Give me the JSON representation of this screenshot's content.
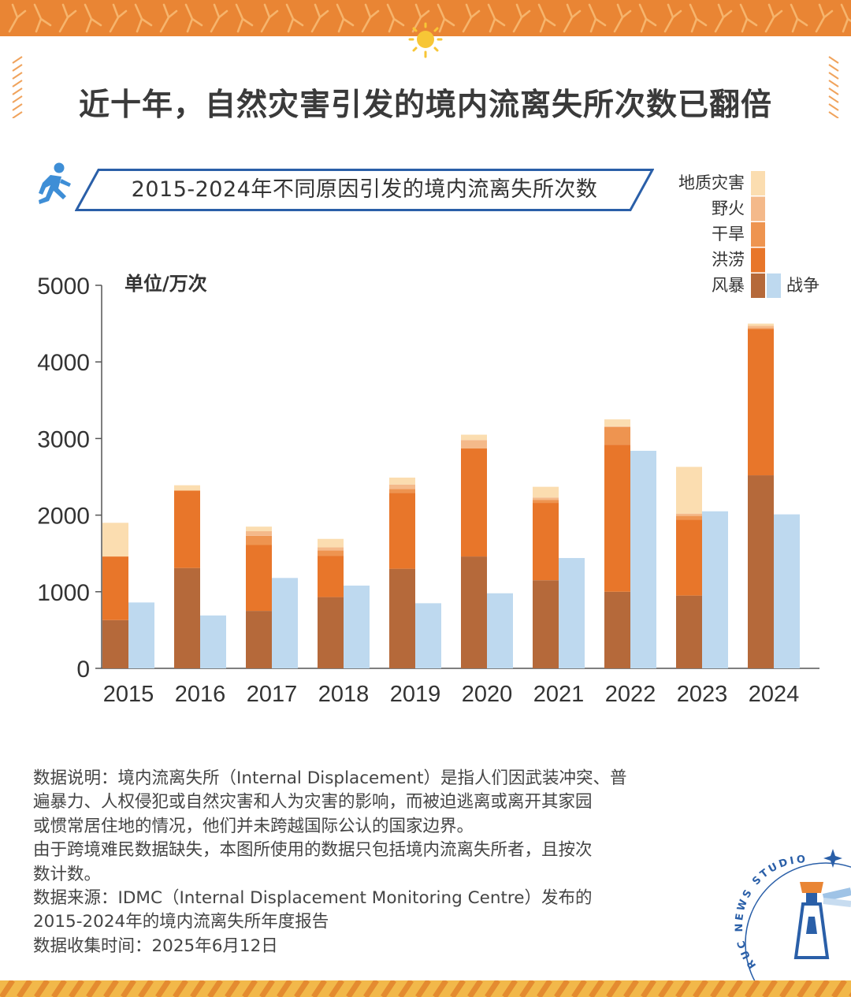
{
  "headline": "近十年，自然灾害引发的境内流离失所次数已翻倍",
  "subtitle": "2015-2024年不同原因引发的境内流离失所次数",
  "colors": {
    "band": "#e98534",
    "band_light": "#f0a35c",
    "accent_blue": "#2a5fa8",
    "sun": "#f7c636",
    "axis": "#555555"
  },
  "icons": [
    "sun-icon",
    "runner-icon",
    "lighthouse-icon",
    "star-icon"
  ],
  "chart_data": {
    "type": "bar",
    "stacked": true,
    "categories": [
      "2015",
      "2016",
      "2017",
      "2018",
      "2019",
      "2020",
      "2021",
      "2022",
      "2023",
      "2024"
    ],
    "unit_label": "单位/万次",
    "ylim": [
      0,
      5000
    ],
    "yticks": [
      0,
      1000,
      2000,
      3000,
      4000,
      5000
    ],
    "grid": false,
    "legend_position": "top-right",
    "stack_series": [
      {
        "name": "风暴",
        "color": "#b5693a",
        "values": [
          630,
          1310,
          750,
          930,
          1300,
          1460,
          1150,
          1000,
          950,
          2520
        ]
      },
      {
        "name": "洪涝",
        "color": "#e8762a",
        "values": [
          830,
          1010,
          860,
          540,
          990,
          1410,
          1010,
          1920,
          990,
          1910
        ]
      },
      {
        "name": "干旱",
        "color": "#ee9450",
        "values": [
          0,
          0,
          120,
          70,
          50,
          0,
          40,
          230,
          50,
          10
        ]
      },
      {
        "name": "野火",
        "color": "#f4b98a",
        "values": [
          0,
          0,
          60,
          40,
          60,
          110,
          30,
          10,
          30,
          30
        ]
      },
      {
        "name": "地质灾害",
        "color": "#fbddb0",
        "values": [
          440,
          70,
          60,
          110,
          90,
          70,
          140,
          90,
          610,
          30
        ]
      }
    ],
    "side_series": {
      "name": "战争",
      "color": "#bed9ef",
      "values": [
        860,
        690,
        1180,
        1080,
        850,
        980,
        1440,
        2840,
        2050,
        2010
      ]
    }
  },
  "notes": [
    "数据说明：境内流离失所（Internal Displacement）是指人们因武装冲突、普",
    "遍暴力、人权侵犯或自然灾害和人为灾害的影响，而被迫逃离或离开其家园",
    "或惯常居住地的情况，他们并未跨越国际公认的国家边界。",
    "由于跨境难民数据缺失，本图所使用的数据只包括境内流离失所者，且按次",
    "数计数。",
    "数据来源：IDMC（Internal Displacement Monitoring Centre）发布的",
    "2015-2024年的境内流离失所年度报告",
    "数据收集时间：2025年6月12日"
  ],
  "logo": {
    "text": "RUC NEWS STUDIO"
  }
}
